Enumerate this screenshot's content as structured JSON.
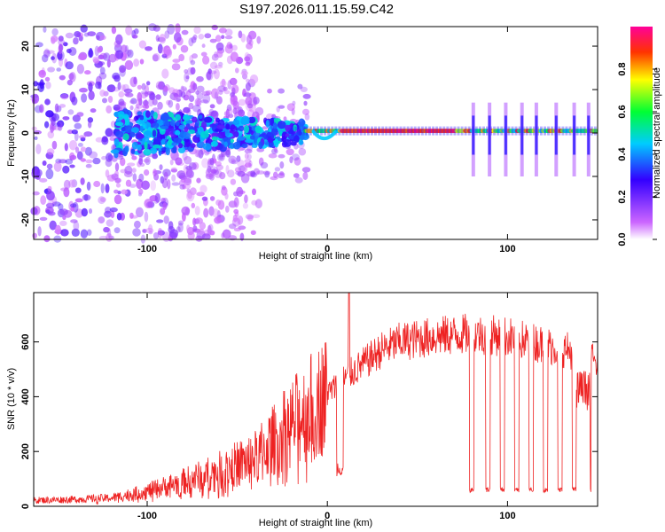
{
  "title": "S197.2026.011.15.59.C42",
  "chart_data": [
    {
      "type": "heatmap",
      "xlabel": "Height of straight line (km)",
      "ylabel": "Frequency (Hz)",
      "xlim": [
        -163,
        150
      ],
      "ylim": [
        -24.5,
        24.5
      ],
      "xticks": [
        -100,
        0,
        100
      ],
      "yticks": [
        -20,
        -10,
        0,
        10,
        20
      ],
      "colorbar": {
        "label": "Normalized spectral amplitude",
        "range": [
          0,
          1
        ],
        "ticks": [
          "0.0",
          "0.2",
          "0.4",
          "0.6",
          "0.8"
        ],
        "tick_values": [
          0,
          0.2,
          0.4,
          0.6,
          0.8
        ],
        "colors": [
          "#ffffff",
          "#cc66ff",
          "#3300ff",
          "#00ccff",
          "#00ff33",
          "#ffff00",
          "#ff3300",
          "#ff0099"
        ]
      },
      "ridge": {
        "frequency_hz": 0.5,
        "strong_from_km": -12,
        "onset_km": -20
      },
      "dips": [
        {
          "x": -2,
          "freq": -2
        },
        {
          "x": 81,
          "freq": 0.5
        },
        {
          "x": 90,
          "freq": 0.5
        },
        {
          "x": 99,
          "freq": 0.5
        },
        {
          "x": 108,
          "freq": 0.5
        },
        {
          "x": 116,
          "freq": 0.5
        },
        {
          "x": 127,
          "freq": 0.5
        },
        {
          "x": 137,
          "freq": 0.5
        },
        {
          "x": 145,
          "freq": 0.5
        }
      ]
    },
    {
      "type": "line",
      "xlabel": "Height of straight line (km)",
      "ylabel": "SNR (10 * v/v)",
      "xlim": [
        -163,
        150
      ],
      "ylim": [
        0,
        780
      ],
      "xticks": [
        -100,
        0,
        100
      ],
      "yticks": [
        0,
        200,
        400,
        600
      ],
      "color": "#ee2222",
      "envelope_x": [
        -163,
        -140,
        -120,
        -100,
        -80,
        -60,
        -40,
        -30,
        -20,
        -10,
        0,
        10,
        20,
        30,
        40,
        60,
        80,
        100,
        120,
        140,
        150
      ],
      "envelope_y": [
        22,
        25,
        30,
        55,
        90,
        130,
        180,
        240,
        300,
        360,
        410,
        470,
        520,
        570,
        600,
        620,
        630,
        620,
        590,
        560,
        520
      ],
      "peak": {
        "x": 12,
        "y": 780
      },
      "dip_near_zero": {
        "x": 7,
        "y": 110
      },
      "dropouts_x": [
        79,
        88,
        96,
        104,
        112,
        120,
        128,
        136,
        144
      ],
      "dropout_level": 50
    }
  ]
}
